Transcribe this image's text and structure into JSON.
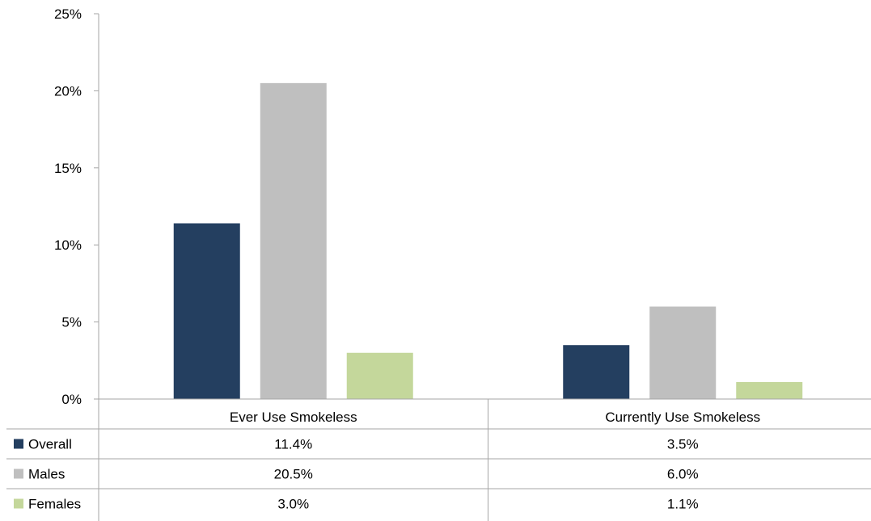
{
  "chart_data": {
    "type": "bar",
    "categories": [
      "Ever Use Smokeless",
      "Currently Use Smokeless"
    ],
    "series": [
      {
        "name": "Overall",
        "values": [
          11.4,
          3.5
        ],
        "labels": [
          "11.4%",
          "3.5%"
        ],
        "color": "#243f60"
      },
      {
        "name": "Males",
        "values": [
          20.5,
          6.0
        ],
        "labels": [
          "20.5%",
          "6.0%"
        ],
        "color": "#bfbfbf"
      },
      {
        "name": "Females",
        "values": [
          3.0,
          1.1
        ],
        "labels": [
          "3.0%",
          "1.1%"
        ],
        "color": "#c4d79b"
      }
    ],
    "ylim": [
      0,
      25
    ],
    "yticks": [
      0,
      5,
      10,
      15,
      20,
      25
    ],
    "ytick_labels": [
      "0%",
      "5%",
      "10%",
      "15%",
      "20%",
      "25%"
    ],
    "title": "",
    "xlabel": "",
    "ylabel": "",
    "grid": false,
    "legend": "data-table"
  }
}
